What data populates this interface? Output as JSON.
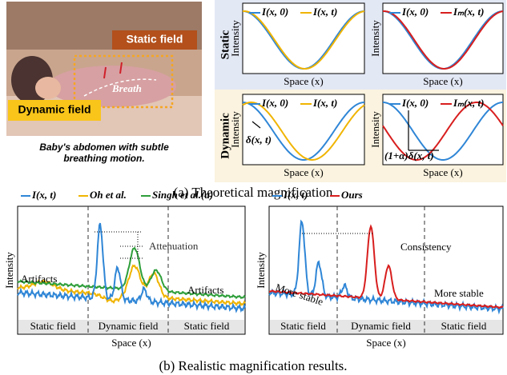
{
  "photo": {
    "static_label": "Static field",
    "breath": "Breath",
    "dynamic_label": "Dynamic field",
    "caption": [
      "Baby's abdomen with subtle",
      "breathing motion."
    ]
  },
  "theory": {
    "row_labels": [
      "Static",
      "Dynamic"
    ],
    "panels": [
      {
        "legend": [
          "I(x, 0)",
          "I(x, t)"
        ],
        "y_label": "Intensity",
        "x_label": "Space (x)"
      },
      {
        "legend": [
          "I(x, 0)",
          "Iₘ(x, t)"
        ],
        "y_label": "Intensity",
        "x_label": "Space (x)"
      },
      {
        "legend": [
          "I(x, 0)",
          "I(x, t)"
        ],
        "y_label": "Intensity",
        "x_label": "Space (x)",
        "annotation": "δ(x, t)"
      },
      {
        "legend": [
          "I(x, 0)",
          "Iₘ(x, t)"
        ],
        "y_label": "Intensity",
        "x_label": "Space (x)",
        "annotation": "(1+α)δ(x, t)"
      }
    ]
  },
  "caption_a": "(a) Theoretical magnification",
  "realistic": {
    "panels": [
      {
        "legend": [
          "I(x, t)",
          "Oh et al.",
          "Singh et al.(a)"
        ],
        "annotations": [
          "Attenuation",
          "Artifacts",
          "Artifacts"
        ],
        "fields": [
          "Static field",
          "Dynamic field",
          "Static field"
        ],
        "y_label": "Intensity",
        "x_label": "Space (x)"
      },
      {
        "legend": [
          "I(x, t)",
          "Ours"
        ],
        "annotations": [
          "Consistency",
          "More stable",
          "More stable"
        ],
        "fields": [
          "Static field",
          "Dynamic field",
          "Static field"
        ],
        "y_label": "Intensity",
        "x_label": "Space (x)"
      }
    ]
  },
  "caption_b": "(b) Realistic magnification results."
}
